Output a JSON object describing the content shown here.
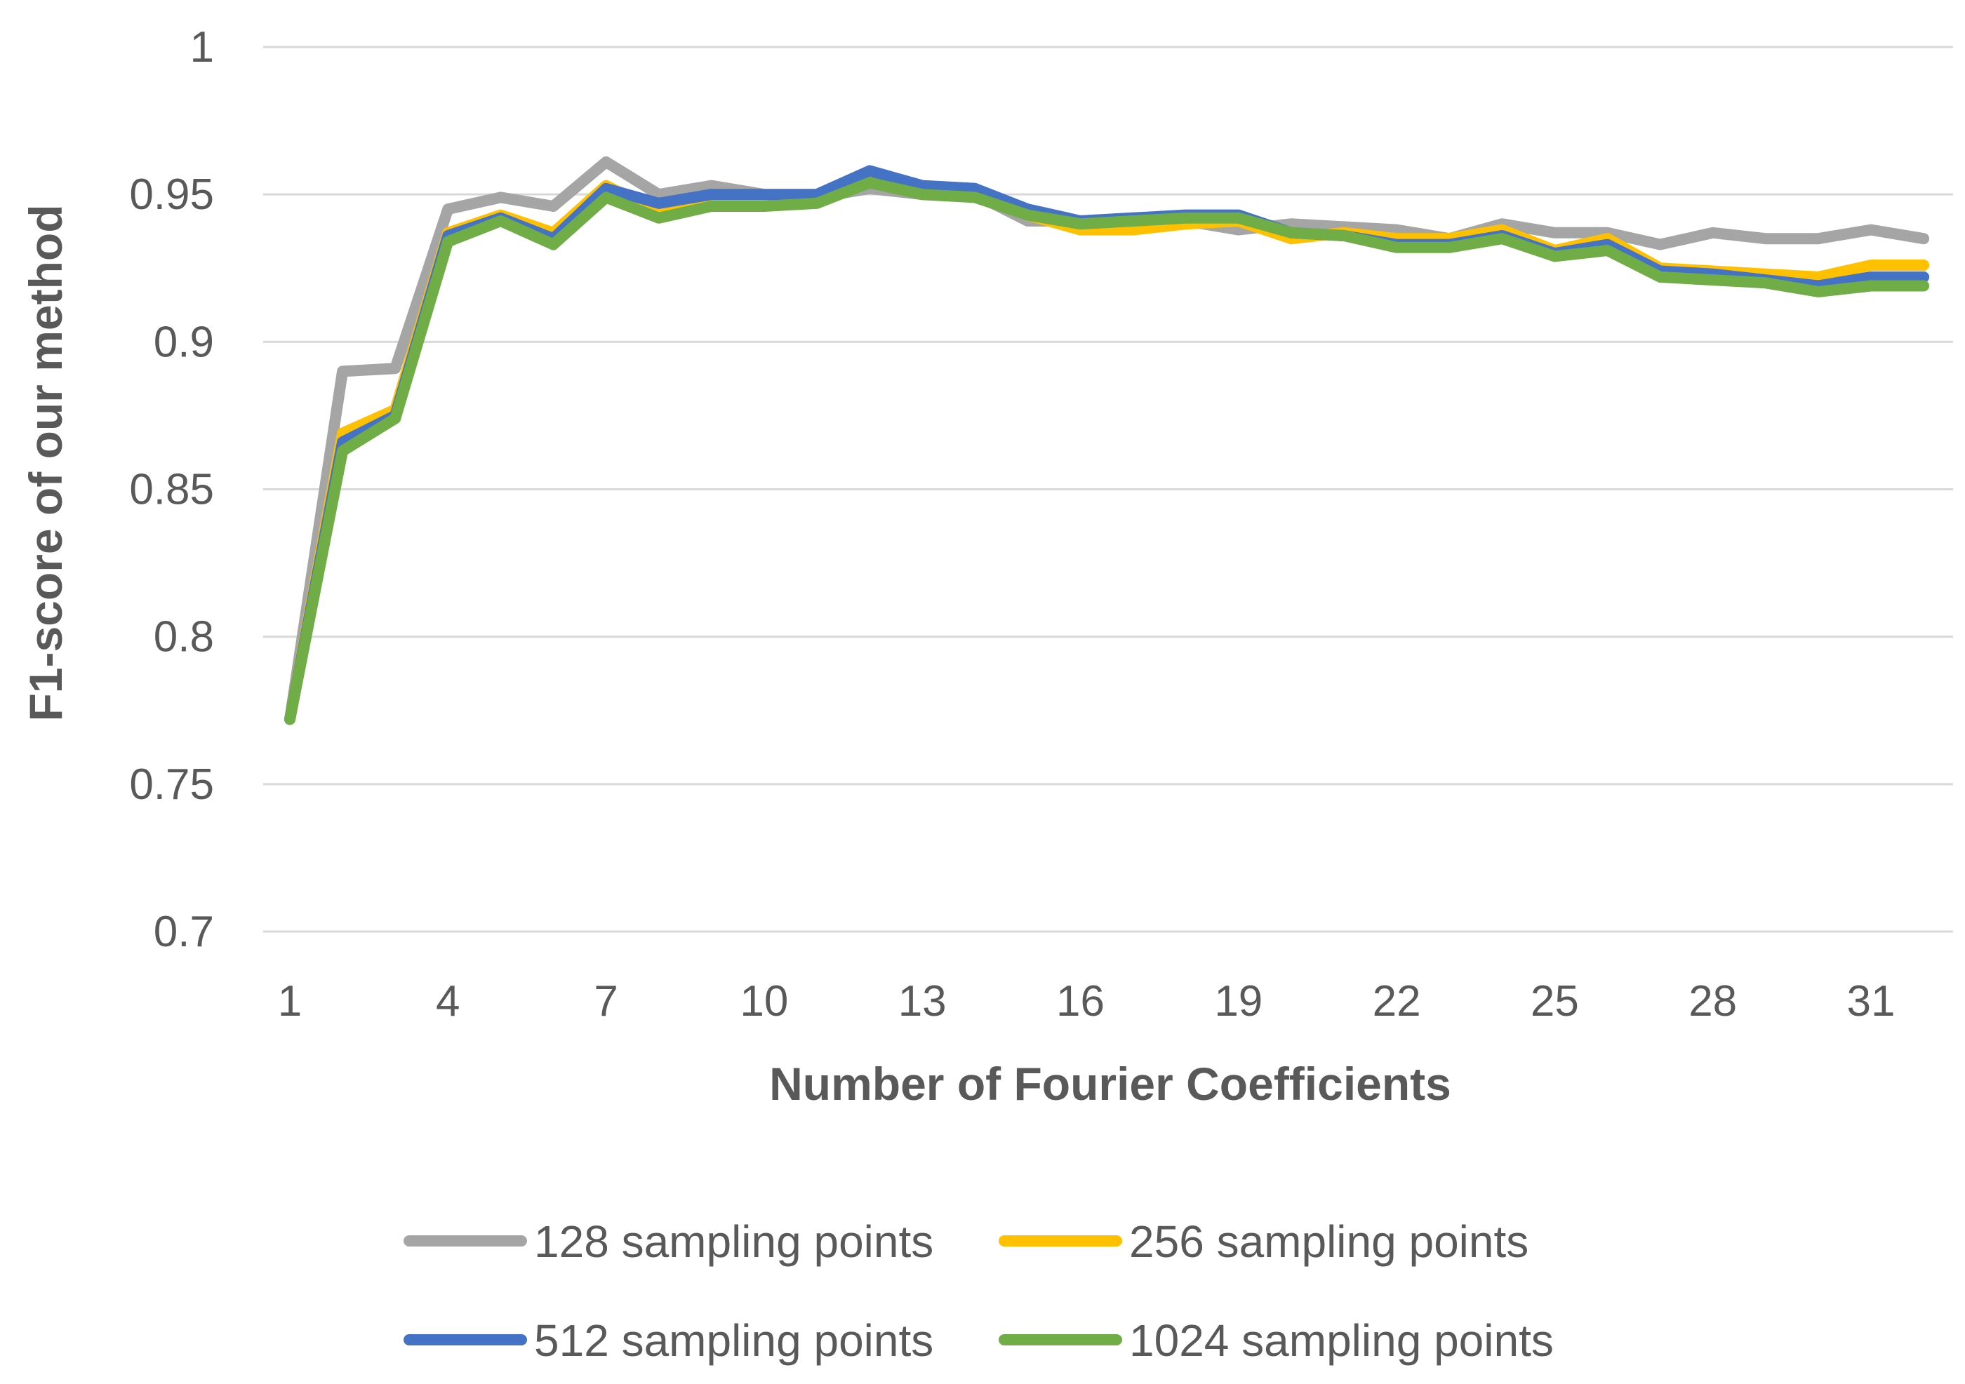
{
  "chart_data": {
    "type": "line",
    "title": "",
    "xlabel": "Number of  Fourier Coefficients",
    "ylabel": "F1-score of our method",
    "x": [
      1,
      2,
      3,
      4,
      5,
      6,
      7,
      8,
      9,
      10,
      11,
      12,
      13,
      14,
      15,
      16,
      17,
      18,
      19,
      20,
      21,
      22,
      23,
      24,
      25,
      26,
      27,
      28,
      29,
      30,
      31,
      32
    ],
    "x_tick_labels": [
      "1",
      "4",
      "7",
      "10",
      "13",
      "16",
      "19",
      "22",
      "25",
      "28",
      "31"
    ],
    "y_tick_labels": [
      "0.7",
      "0.75",
      "0.8",
      "0.85",
      "0.9",
      "0.95",
      "1"
    ],
    "ylim": [
      0.7,
      1.0
    ],
    "grid": "horizontal",
    "legend_position": "bottom",
    "series": [
      {
        "name": "128 sampling points",
        "color": "#A5A5A5",
        "values": [
          0.772,
          0.89,
          0.891,
          0.945,
          0.949,
          0.946,
          0.961,
          0.95,
          0.953,
          0.95,
          0.949,
          0.952,
          0.95,
          0.95,
          0.941,
          0.941,
          0.942,
          0.941,
          0.938,
          0.94,
          0.939,
          0.938,
          0.935,
          0.94,
          0.937,
          0.937,
          0.933,
          0.937,
          0.935,
          0.935,
          0.938,
          0.935
        ]
      },
      {
        "name": "256 sampling points",
        "color": "#FFC000",
        "values": [
          0.772,
          0.869,
          0.877,
          0.937,
          0.943,
          0.937,
          0.953,
          0.944,
          0.948,
          0.947,
          0.947,
          0.955,
          0.951,
          0.95,
          0.943,
          0.938,
          0.938,
          0.94,
          0.941,
          0.935,
          0.937,
          0.935,
          0.935,
          0.938,
          0.931,
          0.935,
          0.925,
          0.924,
          0.923,
          0.922,
          0.926,
          0.926
        ]
      },
      {
        "name": "512 sampling points",
        "color": "#4472C4",
        "values": [
          0.772,
          0.866,
          0.875,
          0.936,
          0.942,
          0.935,
          0.952,
          0.947,
          0.95,
          0.95,
          0.95,
          0.958,
          0.953,
          0.952,
          0.945,
          0.941,
          0.942,
          0.943,
          0.943,
          0.937,
          0.936,
          0.933,
          0.933,
          0.936,
          0.93,
          0.933,
          0.924,
          0.923,
          0.921,
          0.919,
          0.922,
          0.922
        ]
      },
      {
        "name": "1024 sampling points",
        "color": "#70AD47",
        "values": [
          0.772,
          0.863,
          0.874,
          0.934,
          0.941,
          0.933,
          0.949,
          0.942,
          0.946,
          0.946,
          0.947,
          0.954,
          0.95,
          0.949,
          0.943,
          0.94,
          0.941,
          0.942,
          0.942,
          0.937,
          0.936,
          0.932,
          0.932,
          0.935,
          0.929,
          0.931,
          0.922,
          0.921,
          0.92,
          0.917,
          0.919,
          0.919
        ]
      }
    ]
  }
}
